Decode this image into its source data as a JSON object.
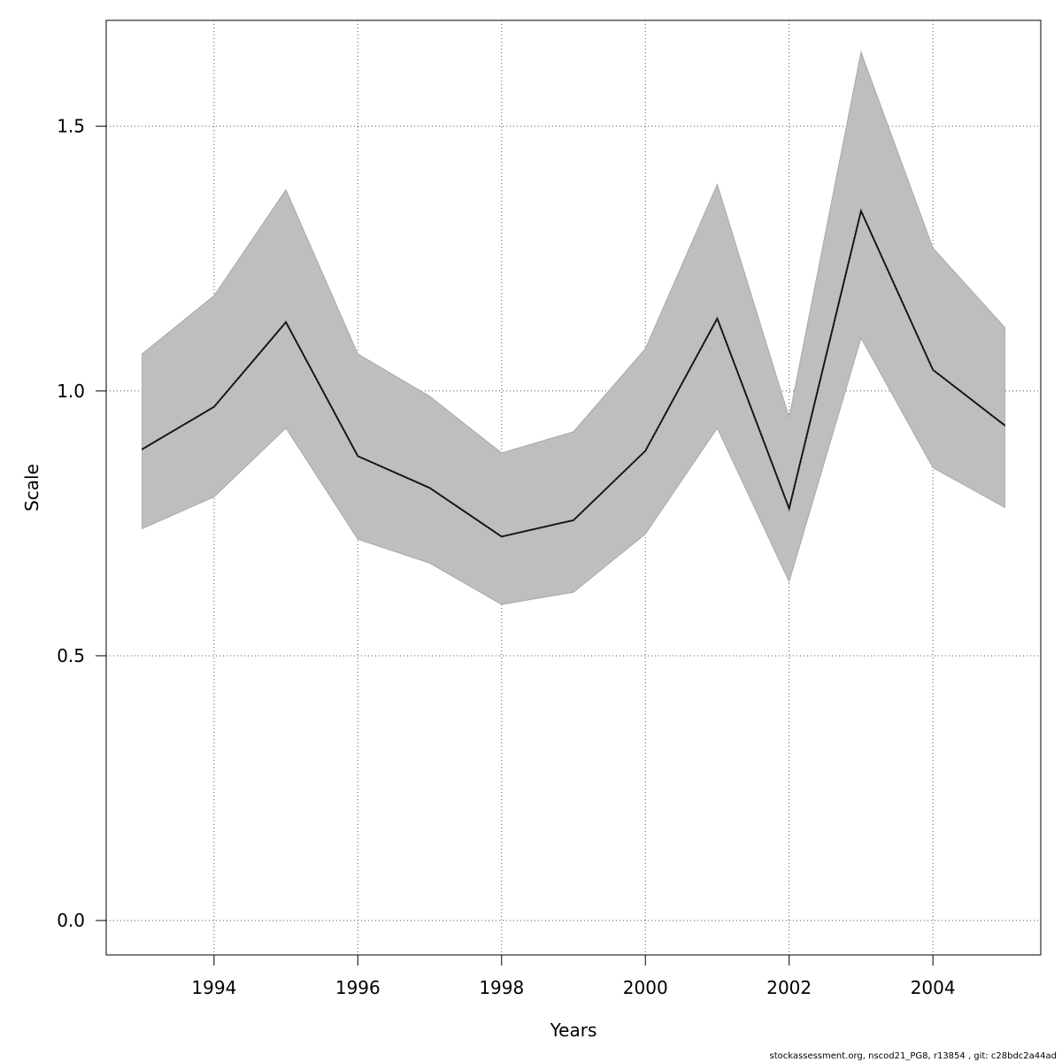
{
  "chart_data": {
    "type": "line",
    "title": "",
    "xlabel": "Years",
    "ylabel": "Scale",
    "x": [
      1993,
      1994,
      1995,
      1996,
      1997,
      1998,
      1999,
      2000,
      2001,
      2002,
      2003,
      2004,
      2005
    ],
    "series": [
      {
        "values": [
          0.89,
          0.97,
          1.13,
          0.877,
          0.817,
          0.725,
          0.756,
          0.887,
          1.137,
          0.778,
          1.34,
          1.04,
          0.935
        ],
        "lower": [
          0.74,
          0.8,
          0.93,
          0.72,
          0.675,
          0.597,
          0.62,
          0.73,
          0.93,
          0.64,
          1.1,
          0.855,
          0.78
        ],
        "upper": [
          1.07,
          1.18,
          1.38,
          1.07,
          0.99,
          0.883,
          0.923,
          1.08,
          1.39,
          0.95,
          1.64,
          1.27,
          1.12
        ],
        "line_color": "#222222",
        "band_color": "#bebebe"
      }
    ],
    "xlim": [
      1992.5,
      2005.5
    ],
    "ylim": [
      -0.065,
      1.7
    ],
    "xticks": [
      "1994",
      "1996",
      "1998",
      "2000",
      "2002",
      "2004"
    ],
    "yticks": [
      "0.0",
      "0.5",
      "1.0",
      "1.5"
    ],
    "grid": true
  },
  "footer": "stockassessment.org, nscod21_PG8, r13854 , git: c28bdc2a44ad"
}
